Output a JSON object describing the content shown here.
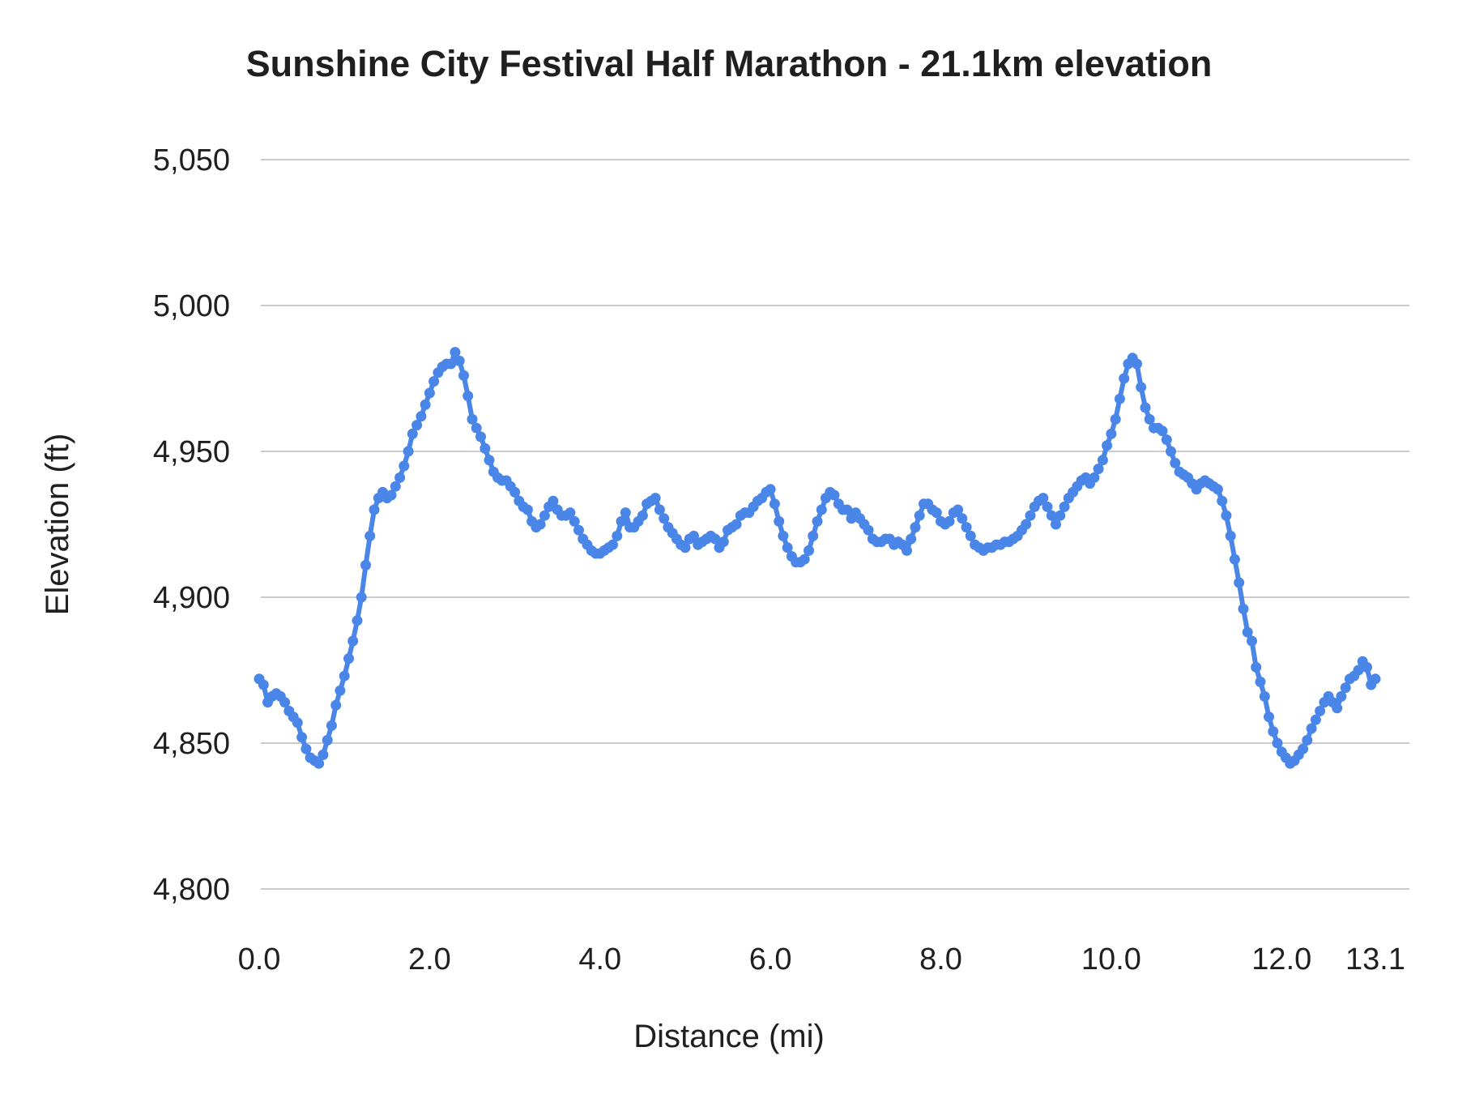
{
  "chart_data": {
    "type": "line",
    "title": "Sunshine City Festival Half Marathon - 21.1km elevation",
    "xlabel": "Distance (mi)",
    "ylabel": "Elevation (ft)",
    "xlim": [
      0,
      13.1
    ],
    "ylim": [
      4800,
      5050
    ],
    "grid": "horizontal-only",
    "legend": "none",
    "series_color": "#4a86e8",
    "gridline_color": "#cccccc",
    "text_color": "#1f1f1f",
    "x_ticks": [
      0.0,
      2.0,
      4.0,
      6.0,
      8.0,
      10.0,
      12.0,
      13.1
    ],
    "x_tick_labels": [
      "0.0",
      "2.0",
      "4.0",
      "6.0",
      "8.0",
      "10.0",
      "12.0",
      "13.1"
    ],
    "y_ticks": [
      4800,
      4850,
      4900,
      4950,
      5000,
      5050
    ],
    "y_tick_labels": [
      "4,800",
      "4,850",
      "4,900",
      "4,950",
      "5,000",
      "5,050"
    ],
    "x_start_mi": 0,
    "x_step_mi": 0.05,
    "elevations_ft": [
      4872,
      4870,
      4864,
      4866,
      4867,
      4866,
      4864,
      4861,
      4859,
      4857,
      4852,
      4848,
      4845,
      4844,
      4843,
      4846,
      4851,
      4856,
      4863,
      4868,
      4873,
      4879,
      4885,
      4892,
      4900,
      4911,
      4921,
      4930,
      4934,
      4936,
      4934,
      4935,
      4938,
      4941,
      4945,
      4950,
      4956,
      4959,
      4962,
      4966,
      4970,
      4974,
      4977,
      4979,
      4980,
      4980,
      4984,
      4981,
      4976,
      4969,
      4961,
      4958,
      4955,
      4951,
      4947,
      4943,
      4941,
      4940,
      4940,
      4938,
      4936,
      4933,
      4931,
      4930,
      4926,
      4924,
      4925,
      4928,
      4931,
      4933,
      4930,
      4928,
      4928,
      4929,
      4926,
      4923,
      4920,
      4918,
      4916,
      4915,
      4915,
      4916,
      4917,
      4918,
      4921,
      4926,
      4929,
      4924,
      4924,
      4926,
      4928,
      4932,
      4933,
      4934,
      4930,
      4927,
      4924,
      4922,
      4920,
      4918,
      4917,
      4920,
      4921,
      4918,
      4919,
      4920,
      4921,
      4920,
      4917,
      4919,
      4923,
      4924,
      4925,
      4928,
      4929,
      4929,
      4931,
      4933,
      4934,
      4936,
      4937,
      4932,
      4926,
      4921,
      4917,
      4914,
      4912,
      4912,
      4913,
      4916,
      4921,
      4926,
      4930,
      4934,
      4936,
      4935,
      4932,
      4930,
      4930,
      4927,
      4929,
      4927,
      4925,
      4923,
      4920,
      4919,
      4919,
      4920,
      4920,
      4918,
      4919,
      4918,
      4916,
      4920,
      4924,
      4928,
      4932,
      4932,
      4930,
      4929,
      4926,
      4925,
      4926,
      4929,
      4930,
      4927,
      4924,
      4921,
      4918,
      4917,
      4916,
      4917,
      4917,
      4918,
      4918,
      4919,
      4919,
      4920,
      4921,
      4923,
      4925,
      4928,
      4931,
      4933,
      4934,
      4931,
      4928,
      4925,
      4928,
      4931,
      4934,
      4936,
      4938,
      4940,
      4941,
      4939,
      4941,
      4944,
      4947,
      4952,
      4956,
      4961,
      4968,
      4975,
      4980,
      4982,
      4980,
      4972,
      4965,
      4961,
      4958,
      4958,
      4957,
      4954,
      4950,
      4946,
      4943,
      4942,
      4941,
      4939,
      4937,
      4939,
      4940,
      4939,
      4938,
      4937,
      4933,
      4928,
      4921,
      4913,
      4905,
      4896,
      4888,
      4885,
      4876,
      4871,
      4866,
      4859,
      4854,
      4850,
      4847,
      4845,
      4843,
      4844,
      4846,
      4848,
      4851,
      4855,
      4858,
      4861,
      4864,
      4866,
      4864,
      4862,
      4866,
      4869,
      4872,
      4873,
      4875,
      4878,
      4876,
      4870,
      4872
    ]
  }
}
